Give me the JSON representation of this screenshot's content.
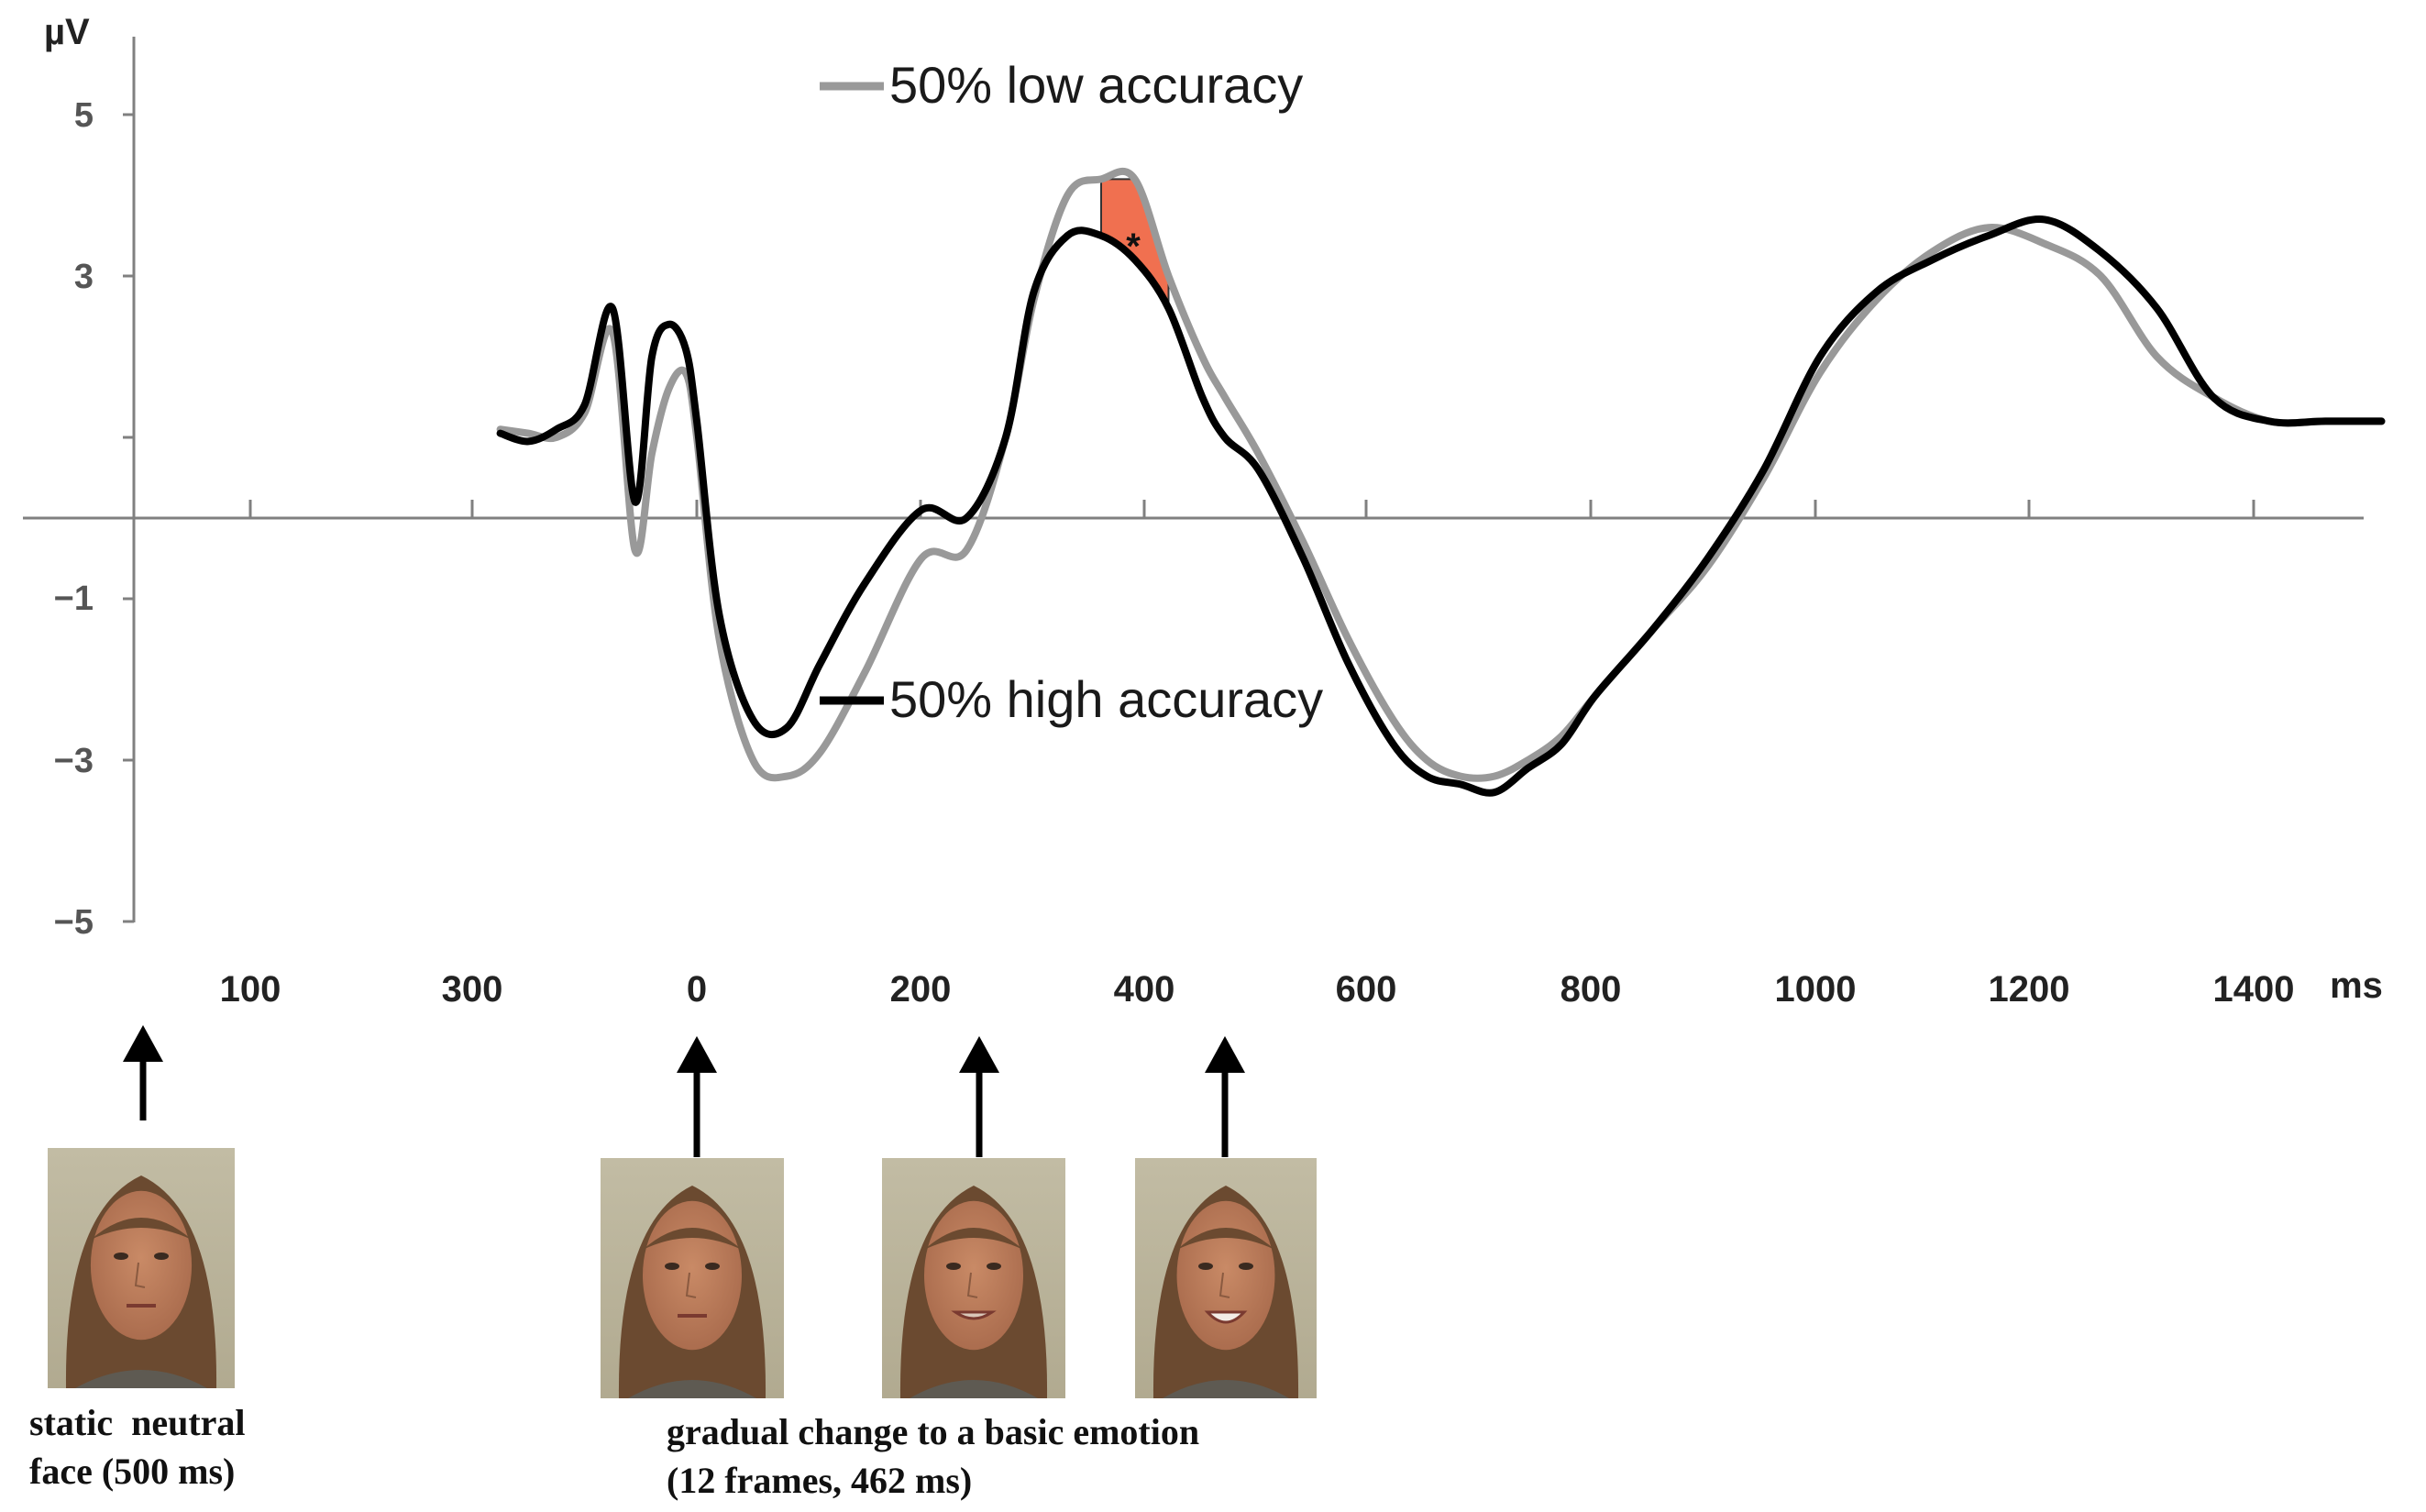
{
  "chart_data": {
    "type": "line",
    "ylabel": "µV",
    "xunit": "ms",
    "ylim": [
      -5,
      6
    ],
    "yticks": [
      "5",
      "3",
      "−1",
      "−3",
      "−5"
    ],
    "ytick_values": [
      5,
      3,
      -1,
      -3,
      -5
    ],
    "hidden_ytick": "1",
    "xtick_labels": [
      "100",
      "300",
      "0",
      "200",
      "400",
      "600",
      "800",
      "1000",
      "1200",
      "1400"
    ],
    "baseline_segment": [
      "100",
      "300"
    ],
    "stimulus_segment": [
      "0",
      "200",
      "400",
      "600",
      "800",
      "1000",
      "1200",
      "1400"
    ],
    "series": [
      {
        "name": "50% low accuracy",
        "color": "#999999",
        "x": [
          -175,
          -150,
          -125,
          -100,
          -75,
          -55,
          -40,
          -25,
          -10,
          0,
          20,
          50,
          80,
          110,
          150,
          200,
          240,
          275,
          300,
          330,
          360,
          390,
          420,
          450,
          470,
          500,
          540,
          580,
          620,
          650,
          680,
          710,
          740,
          770,
          800,
          850,
          900,
          950,
          1000,
          1050,
          1100,
          1150,
          1200,
          1250,
          1300,
          1350,
          1400,
          1450,
          1500
        ],
        "values": [
          1.1,
          1.05,
          1.0,
          1.3,
          2.3,
          -0.4,
          0.8,
          1.6,
          1.8,
          1.0,
          -1.5,
          -3.0,
          -3.2,
          -2.9,
          -1.9,
          -0.5,
          -0.4,
          1.0,
          2.7,
          4.0,
          4.2,
          4.2,
          3.0,
          2.0,
          1.5,
          0.8,
          -0.3,
          -1.5,
          -2.5,
          -3.0,
          -3.2,
          -3.2,
          -3.0,
          -2.7,
          -2.2,
          -1.4,
          -0.6,
          0.5,
          1.8,
          2.7,
          3.3,
          3.6,
          3.4,
          3.0,
          2.0,
          1.5,
          1.2,
          1.2,
          1.2
        ]
      },
      {
        "name": "50% high accuracy",
        "color": "#000000",
        "x": [
          -175,
          -150,
          -125,
          -100,
          -75,
          -55,
          -40,
          -25,
          -10,
          0,
          20,
          50,
          80,
          110,
          150,
          200,
          240,
          275,
          300,
          330,
          360,
          390,
          420,
          450,
          470,
          500,
          540,
          580,
          620,
          650,
          680,
          710,
          740,
          770,
          800,
          850,
          900,
          950,
          1000,
          1050,
          1100,
          1150,
          1200,
          1250,
          1300,
          1350,
          1400,
          1450,
          1500
        ],
        "values": [
          1.05,
          0.95,
          1.1,
          1.4,
          2.6,
          0.2,
          2.0,
          2.4,
          2.1,
          1.2,
          -1.2,
          -2.5,
          -2.6,
          -1.8,
          -0.8,
          0.1,
          0.0,
          1.0,
          2.8,
          3.5,
          3.5,
          3.2,
          2.6,
          1.5,
          1.0,
          0.6,
          -0.5,
          -1.8,
          -2.8,
          -3.2,
          -3.3,
          -3.4,
          -3.1,
          -2.8,
          -2.2,
          -1.4,
          -0.5,
          0.6,
          2.0,
          2.8,
          3.2,
          3.5,
          3.7,
          3.3,
          2.6,
          1.5,
          1.2,
          1.2,
          1.2
        ]
      }
    ],
    "significance": {
      "marker": "*",
      "color": "#f07050"
    }
  },
  "legend": {
    "low": "50% low accuracy",
    "high": "50% high accuracy"
  },
  "captions": {
    "static_line1": "static  neutral",
    "static_line2": "face (500 ms)",
    "change_line1": "gradual change to a basic emotion",
    "change_line2": "(12 frames, 462 ms)"
  }
}
